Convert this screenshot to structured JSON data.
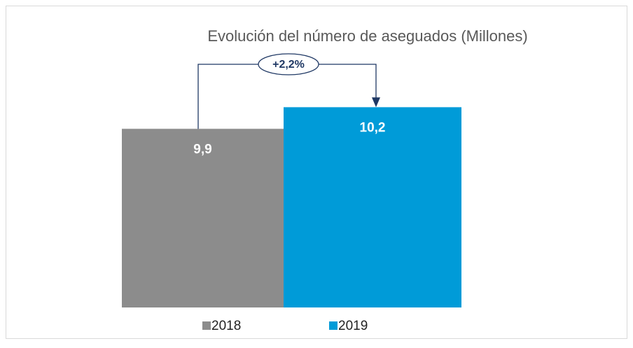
{
  "chart_data": {
    "type": "bar",
    "title": "Evolución del número de aseguados (Millones)",
    "series": [
      {
        "name": "2018",
        "color": "#8c8c8c",
        "values": [
          9.9
        ],
        "value_labels": [
          "9,9"
        ]
      },
      {
        "name": "2019",
        "color": "#009bd8",
        "values": [
          10.2
        ],
        "value_labels": [
          "10,2"
        ]
      }
    ],
    "ylim": [
      7.42,
      11.3
    ],
    "annotation": "+2,2%",
    "legend": "bottom"
  }
}
